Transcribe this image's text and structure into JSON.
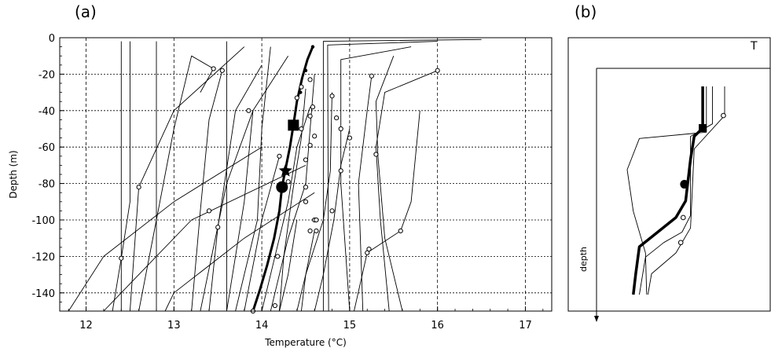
{
  "chart_data": [
    {
      "panel_label": "(a)",
      "type": "line",
      "xlabel": "Temperature (°C)",
      "ylabel": "Depth (m)",
      "xlim": [
        11.7,
        17.3
      ],
      "ylim": [
        0,
        -150
      ],
      "x_ticks": [
        "12",
        "13",
        "14",
        "15",
        "16",
        "17"
      ],
      "y_ticks": [
        "0",
        "-20",
        "-40",
        "-60",
        "-80",
        "-100",
        "-120",
        "-140"
      ],
      "grid": true,
      "colors": {
        "profiles": "#000000",
        "markers": "#000000"
      },
      "series": [
        {
          "style": "bold",
          "points": [
            [
              14.58,
              -5
            ],
            [
              14.52,
              -12
            ],
            [
              14.46,
              -22
            ],
            [
              14.4,
              -35
            ],
            [
              14.36,
              -48
            ],
            [
              14.32,
              -60
            ],
            [
              14.27,
              -72
            ],
            [
              14.23,
              -82
            ],
            [
              14.2,
              -95
            ],
            [
              14.14,
              -110
            ],
            [
              14.06,
              -125
            ],
            [
              13.98,
              -138
            ],
            [
              13.9,
              -150
            ]
          ]
        },
        {
          "style": "thin",
          "points": [
            [
              16.5,
              -1
            ],
            [
              14.7,
              -2
            ],
            [
              14.7,
              -150
            ]
          ]
        },
        {
          "style": "thin",
          "points": [
            [
              16.0,
              -2
            ],
            [
              14.75,
              -4
            ],
            [
              14.76,
              -150
            ]
          ]
        },
        {
          "style": "thin",
          "points": [
            [
              15.7,
              -5
            ],
            [
              14.9,
              -12
            ],
            [
              14.9,
              -80
            ],
            [
              15.0,
              -150
            ]
          ]
        },
        {
          "style": "thin",
          "points": [
            [
              16.0,
              -18
            ],
            [
              15.4,
              -30
            ],
            [
              15.3,
              -60
            ],
            [
              15.35,
              -100
            ],
            [
              15.45,
              -150
            ]
          ]
        },
        {
          "style": "thin",
          "points": [
            [
              15.25,
              -21
            ],
            [
              15.2,
              -40
            ],
            [
              15.1,
              -80
            ],
            [
              15.15,
              -150
            ]
          ]
        },
        {
          "style": "thin",
          "points": [
            [
              15.5,
              -10
            ],
            [
              15.3,
              -35
            ],
            [
              15.32,
              -64
            ],
            [
              15.4,
              -110
            ],
            [
              15.6,
              -150
            ]
          ]
        },
        {
          "style": "thin",
          "points": [
            [
              15.8,
              -40
            ],
            [
              15.7,
              -90
            ],
            [
              15.58,
              -106
            ],
            [
              15.2,
              -118
            ],
            [
              15.05,
              -150
            ]
          ]
        },
        {
          "style": "thin",
          "points": [
            [
              15.0,
              -50
            ],
            [
              14.9,
              -70
            ],
            [
              14.82,
              -100
            ],
            [
              14.7,
              -130
            ],
            [
              14.6,
              -150
            ]
          ]
        },
        {
          "style": "thin",
          "points": [
            [
              14.8,
              -30
            ],
            [
              14.78,
              -73
            ],
            [
              14.7,
              -100
            ],
            [
              14.5,
              -130
            ],
            [
              14.4,
              -150
            ]
          ]
        },
        {
          "style": "thin",
          "points": [
            [
              14.6,
              -20
            ],
            [
              14.55,
              -50
            ],
            [
              14.5,
              -80
            ],
            [
              14.3,
              -110
            ],
            [
              14.1,
              -150
            ]
          ]
        },
        {
          "style": "thin",
          "points": [
            [
              14.5,
              -28
            ],
            [
              14.45,
              -55
            ],
            [
              14.35,
              -85
            ],
            [
              14.25,
              -120
            ],
            [
              14.2,
              -150
            ]
          ]
        },
        {
          "style": "thin",
          "points": [
            [
              13.6,
              -2
            ],
            [
              13.6,
              -150
            ]
          ]
        },
        {
          "style": "thin",
          "points": [
            [
              12.8,
              -2
            ],
            [
              12.8,
              -150
            ]
          ]
        },
        {
          "style": "thin",
          "points": [
            [
              12.4,
              -2
            ],
            [
              12.4,
              -150
            ]
          ]
        },
        {
          "style": "thin",
          "points": [
            [
              13.3,
              -30
            ],
            [
              13.45,
              -17
            ],
            [
              13.2,
              -10
            ],
            [
              13.0,
              -50
            ],
            [
              12.8,
              -100
            ],
            [
              12.6,
              -150
            ]
          ]
        },
        {
          "style": "thin",
          "points": [
            [
              13.55,
              -18
            ],
            [
              13.4,
              -45
            ],
            [
              13.3,
              -95
            ],
            [
              13.2,
              -150
            ]
          ]
        },
        {
          "style": "thin",
          "points": [
            [
              14.0,
              -15
            ],
            [
              13.7,
              -40
            ],
            [
              13.5,
              -104
            ],
            [
              13.4,
              -150
            ]
          ]
        },
        {
          "style": "thin",
          "points": [
            [
              14.3,
              -10
            ],
            [
              13.9,
              -40
            ],
            [
              13.6,
              -80
            ],
            [
              13.3,
              -150
            ]
          ]
        },
        {
          "style": "thin",
          "points": [
            [
              13.8,
              -5
            ],
            [
              13.0,
              -40
            ],
            [
              12.6,
              -82
            ],
            [
              12.5,
              -150
            ]
          ]
        },
        {
          "style": "thin",
          "points": [
            [
              12.5,
              -2
            ],
            [
              12.5,
              -90
            ],
            [
              12.4,
              -121
            ],
            [
              12.3,
              -150
            ]
          ]
        },
        {
          "style": "thin",
          "points": [
            [
              14.0,
              -60
            ],
            [
              13.0,
              -90
            ],
            [
              12.2,
              -120
            ],
            [
              11.8,
              -150
            ]
          ]
        },
        {
          "style": "thin",
          "points": [
            [
              14.5,
              -70
            ],
            [
              13.2,
              -100
            ],
            [
              12.6,
              -130
            ],
            [
              12.2,
              -150
            ]
          ]
        },
        {
          "style": "thin",
          "points": [
            [
              14.6,
              -85
            ],
            [
              13.8,
              -110
            ],
            [
              13.0,
              -140
            ],
            [
              12.9,
              -150
            ]
          ]
        },
        {
          "style": "thin",
          "points": [
            [
              14.2,
              -65
            ],
            [
              14.0,
              -100
            ],
            [
              13.8,
              -150
            ]
          ]
        },
        {
          "style": "thin",
          "points": [
            [
              14.4,
              -100
            ],
            [
              14.3,
              -130
            ],
            [
              14.2,
              -150
            ]
          ]
        },
        {
          "style": "thin",
          "points": [
            [
              14.6,
              -106
            ],
            [
              14.5,
              -130
            ],
            [
              14.45,
              -150
            ]
          ]
        },
        {
          "style": "thin",
          "points": [
            [
              14.55,
              -38
            ],
            [
              14.4,
              -60
            ],
            [
              14.3,
              -90
            ],
            [
              14.0,
              -150
            ]
          ]
        },
        {
          "style": "thin",
          "points": [
            [
              14.1,
              -5
            ],
            [
              14.0,
              -50
            ],
            [
              13.95,
              -100
            ],
            [
              13.7,
              -150
            ]
          ]
        },
        {
          "style": "thin",
          "points": [
            [
              13.9,
              -40
            ],
            [
              13.8,
              -90
            ],
            [
              13.6,
              -150
            ]
          ]
        }
      ],
      "open_markers": [
        [
          13.45,
          -17
        ],
        [
          13.55,
          -18
        ],
        [
          13.85,
          -40
        ],
        [
          12.6,
          -82
        ],
        [
          12.4,
          -121
        ],
        [
          13.4,
          -95
        ],
        [
          13.5,
          -104
        ],
        [
          14.45,
          -27
        ],
        [
          14.4,
          -33
        ],
        [
          14.55,
          -23
        ],
        [
          14.58,
          -38
        ],
        [
          14.55,
          -43
        ],
        [
          14.45,
          -50
        ],
        [
          14.8,
          -32
        ],
        [
          14.9,
          -50
        ],
        [
          14.9,
          -73
        ],
        [
          15.0,
          -55
        ],
        [
          15.25,
          -21
        ],
        [
          15.3,
          -64
        ],
        [
          16.0,
          -18
        ],
        [
          15.58,
          -106
        ],
        [
          15.2,
          -118
        ],
        [
          15.22,
          -116
        ],
        [
          14.6,
          -100
        ],
        [
          14.55,
          -106
        ],
        [
          14.62,
          -106
        ],
        [
          14.62,
          -100
        ],
        [
          14.8,
          -95
        ],
        [
          14.5,
          -90
        ],
        [
          14.5,
          -82
        ],
        [
          14.3,
          -79
        ],
        [
          14.5,
          -67
        ],
        [
          14.55,
          -59
        ],
        [
          14.2,
          -65
        ],
        [
          14.6,
          -54
        ],
        [
          14.85,
          -44
        ],
        [
          14.18,
          -120
        ],
        [
          14.15,
          -147
        ],
        [
          13.9,
          -150
        ]
      ],
      "key_markers": {
        "square": [
          14.36,
          -48
        ],
        "star": [
          14.27,
          -73
        ],
        "circle": [
          14.23,
          -82
        ]
      },
      "small_filled_dots": [
        [
          14.58,
          -5
        ],
        [
          14.5,
          -18
        ],
        [
          14.44,
          -30
        ]
      ]
    },
    {
      "panel_label": "(b)",
      "type": "line",
      "xlabel": "T",
      "ylabel": "depth",
      "schematic": true,
      "series": [
        {
          "style": "bold",
          "points": [
            [
              0.62,
              0.0
            ],
            [
              0.62,
              0.2
            ],
            [
              0.55,
              0.24
            ],
            [
              0.52,
              0.35
            ],
            [
              0.48,
              0.55
            ],
            [
              0.4,
              0.63
            ],
            [
              0.25,
              0.7
            ],
            [
              0.1,
              0.77
            ],
            [
              0.07,
              0.9
            ],
            [
              0.05,
              1.0
            ]
          ]
        },
        {
          "style": "thin",
          "points": [
            [
              0.7,
              0.0
            ],
            [
              0.7,
              0.18
            ],
            [
              0.52,
              0.24
            ],
            [
              0.52,
              0.62
            ],
            [
              0.45,
              0.7
            ],
            [
              0.3,
              0.75
            ],
            [
              0.15,
              0.82
            ],
            [
              0.1,
              1.0
            ]
          ]
        },
        {
          "style": "thin",
          "points": [
            [
              0.65,
              0.0
            ],
            [
              0.65,
              0.22
            ],
            [
              0.1,
              0.25
            ],
            [
              0.0,
              0.4
            ],
            [
              0.05,
              0.6
            ],
            [
              0.15,
              0.8
            ],
            [
              0.16,
              1.0
            ]
          ]
        },
        {
          "style": "thin",
          "points": [
            [
              0.8,
              0.0
            ],
            [
              0.8,
              0.14
            ],
            [
              0.55,
              0.3
            ],
            [
              0.52,
              0.68
            ],
            [
              0.4,
              0.8
            ],
            [
              0.2,
              0.9
            ],
            [
              0.17,
              1.0
            ]
          ]
        }
      ],
      "open_markers": [
        [
          0.79,
          0.14
        ],
        [
          0.46,
          0.63
        ],
        [
          0.44,
          0.75
        ]
      ],
      "key_markers": {
        "square": [
          0.62,
          0.2
        ],
        "circle": [
          0.47,
          0.47
        ]
      }
    }
  ]
}
